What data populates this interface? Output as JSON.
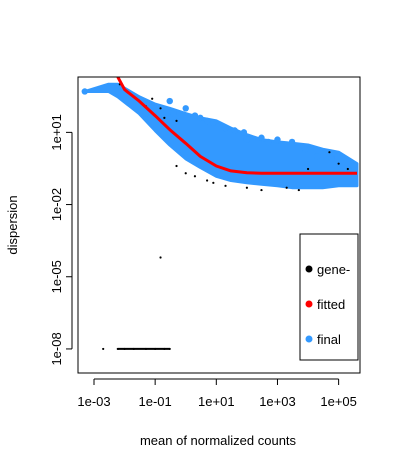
{
  "chart_data": {
    "type": "scatter",
    "xlabel": "mean of normalized counts",
    "ylabel": "dispersion",
    "x_scale": "log10",
    "y_scale": "log10",
    "xlim": [
      0.0003,
      500000
    ],
    "ylim": [
      1e-09,
      2000
    ],
    "x_ticks": [
      0.001,
      0.1,
      10,
      1000,
      100000
    ],
    "x_tick_labels": [
      "1e-03",
      "1e-01",
      "1e+01",
      "1e+03",
      "1e+05"
    ],
    "y_ticks": [
      1e-08,
      1e-05,
      0.01,
      10
    ],
    "y_tick_labels": [
      "1e-08",
      "1e-05",
      "1e-02",
      "1e+01"
    ],
    "legend": {
      "position": "right",
      "entries": [
        {
          "label": "gene-",
          "color": "#000000"
        },
        {
          "label": "fitted",
          "color": "#ff0000"
        },
        {
          "label": "final",
          "color": "#3399ff"
        }
      ]
    },
    "series": [
      {
        "name": "gene-",
        "color": "#000000",
        "points": [
          [
            0.002,
            1e-08
          ],
          [
            0.006,
            1e-08
          ],
          [
            0.01,
            1e-08
          ],
          [
            0.02,
            1e-08
          ],
          [
            0.05,
            1e-08
          ],
          [
            0.1,
            1e-08
          ],
          [
            0.2,
            1e-08
          ],
          [
            0.3,
            1e-08
          ],
          [
            0.15,
            6.3e-05
          ],
          [
            0.007,
            1000
          ],
          [
            0.01,
            600
          ],
          [
            0.02,
            300
          ],
          [
            0.05,
            120
          ],
          [
            0.08,
            250
          ],
          [
            0.15,
            100
          ],
          [
            0.2,
            40
          ],
          [
            0.5,
            30
          ],
          [
            0.5,
            0.4
          ],
          [
            1,
            0.2
          ],
          [
            2,
            0.15
          ],
          [
            5,
            0.1
          ],
          [
            8,
            0.08
          ],
          [
            20,
            0.06
          ],
          [
            100,
            0.05
          ],
          [
            300,
            0.04
          ],
          [
            2000,
            0.05
          ],
          [
            5000,
            0.04
          ],
          [
            10000,
            0.3
          ],
          [
            30000,
            0.2
          ],
          [
            50000,
            1.5
          ],
          [
            100000,
            0.5
          ],
          [
            200000,
            0.3
          ]
        ]
      },
      {
        "name": "fitted",
        "color": "#ff0000",
        "points": [
          [
            0.006,
            2000
          ],
          [
            0.01,
            600
          ],
          [
            0.03,
            200
          ],
          [
            0.1,
            50
          ],
          [
            0.3,
            13
          ],
          [
            1,
            3.5
          ],
          [
            3,
            1.0
          ],
          [
            10,
            0.4
          ],
          [
            30,
            0.25
          ],
          [
            100,
            0.21
          ],
          [
            300,
            0.2
          ],
          [
            1000,
            0.2
          ],
          [
            10000,
            0.2
          ],
          [
            100000,
            0.2
          ],
          [
            400000,
            0.2
          ]
        ]
      },
      {
        "name": "final",
        "color": "#3399ff",
        "band": [
          [
            0.0005,
            500,
            500
          ],
          [
            0.003,
            500,
            1000
          ],
          [
            0.006,
            300,
            1000
          ],
          [
            0.03,
            60,
            300
          ],
          [
            0.1,
            12,
            150
          ],
          [
            0.3,
            3,
            100
          ],
          [
            1,
            0.8,
            60
          ],
          [
            3,
            0.35,
            40
          ],
          [
            10,
            0.15,
            30
          ],
          [
            30,
            0.1,
            15
          ],
          [
            100,
            0.08,
            8
          ],
          [
            300,
            0.07,
            5
          ],
          [
            1000,
            0.06,
            4
          ],
          [
            3000,
            0.05,
            3.5
          ],
          [
            10000,
            0.05,
            3
          ],
          [
            30000,
            0.05,
            2
          ],
          [
            100000,
            0.06,
            1.5
          ],
          [
            400000,
            0.06,
            0.5
          ]
        ],
        "points": [
          [
            0.0005,
            500
          ],
          [
            0.05,
            60
          ],
          [
            0.3,
            200
          ],
          [
            0.4,
            60
          ],
          [
            1,
            100
          ],
          [
            2,
            50
          ],
          [
            3,
            40
          ],
          [
            5,
            30
          ],
          [
            8,
            25
          ],
          [
            20,
            15
          ],
          [
            40,
            12
          ],
          [
            80,
            10
          ],
          [
            100,
            5
          ],
          [
            300,
            6
          ],
          [
            500,
            4
          ],
          [
            1000,
            5
          ],
          [
            3000,
            4
          ],
          [
            8000,
            2
          ],
          [
            20000,
            1
          ],
          [
            60000,
            0.8
          ],
          [
            300000,
            0.4
          ]
        ]
      }
    ]
  }
}
